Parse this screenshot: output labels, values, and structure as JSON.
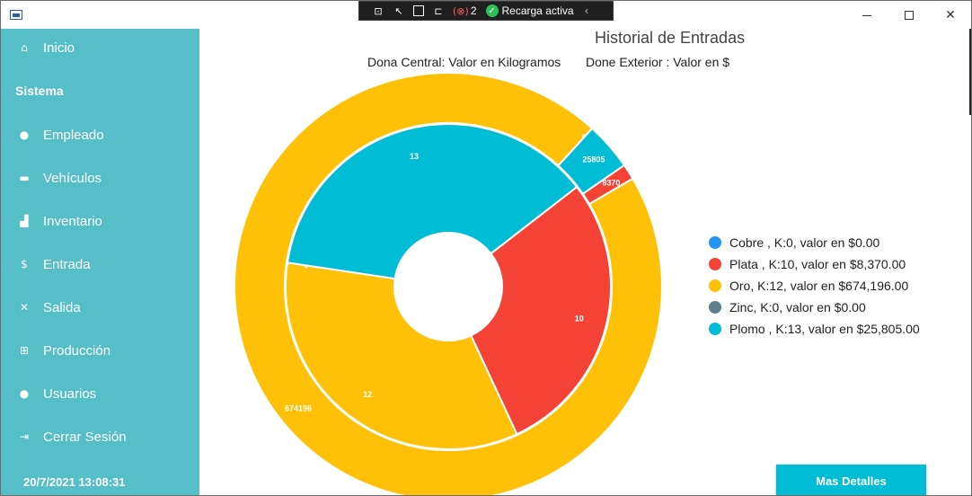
{
  "window": {
    "controls": {
      "minimize": "—",
      "maximize": "☐",
      "close": "✕"
    }
  },
  "debug_toolbar": {
    "error_count": "2",
    "hot_reload_label": "Recarga activa"
  },
  "sidebar": {
    "items": [
      {
        "label": "Inicio",
        "icon": "home-icon",
        "glyph": "⌂"
      },
      {
        "label": "Empleado",
        "icon": "person-icon",
        "glyph": "●"
      },
      {
        "label": "Vehículos",
        "icon": "truck-icon",
        "glyph": "▬"
      },
      {
        "label": "Inventario",
        "icon": "forklift-icon",
        "glyph": "▟"
      },
      {
        "label": "Entrada",
        "icon": "dollar-icon",
        "glyph": "$"
      },
      {
        "label": "Salida",
        "icon": "money-off-icon",
        "glyph": "✕"
      },
      {
        "label": "Producción",
        "icon": "factory-icon",
        "glyph": "⊞"
      },
      {
        "label": "Usuarios",
        "icon": "user-icon",
        "glyph": "●"
      },
      {
        "label": "Cerrar Sesión",
        "icon": "logout-icon",
        "glyph": "⇥"
      }
    ],
    "section_label": "Sistema",
    "datetime": "20/7/2021 13:08:31"
  },
  "chart_data": {
    "type": "donut",
    "title": "Historial de Entradas",
    "subtitle_inner": "Dona Central: Valor en Kilogramos",
    "subtitle_outer": "Done Exterior : Valor en $",
    "categories": [
      "Cobre",
      "Plata",
      "Oro",
      "Zinc",
      "Plomo"
    ],
    "colors": [
      "#2196f3",
      "#f44336",
      "#ffc107",
      "#607d8b",
      "#00bcd4"
    ],
    "series": [
      {
        "ring": "inner",
        "values": [
          0,
          10,
          12,
          0,
          13
        ],
        "labels": [
          "0",
          "10",
          "12",
          "0",
          "13"
        ]
      },
      {
        "ring": "outer",
        "values": [
          0,
          8370,
          674196,
          0,
          25805
        ],
        "labels": [
          "0",
          "8370",
          "674196",
          "0",
          "25805"
        ]
      }
    ],
    "legend_position": "right",
    "legend": [
      "Cobre , K:0, valor en $0.00",
      "Plata , K:10, valor en $8,370.00",
      "Oro, K:12, valor en $674,196.00",
      "Zinc, K:0, valor en $0.00",
      "Plomo , K:13, valor en $25,805.00"
    ]
  },
  "actions": {
    "more_details": "Mas Detalles"
  }
}
